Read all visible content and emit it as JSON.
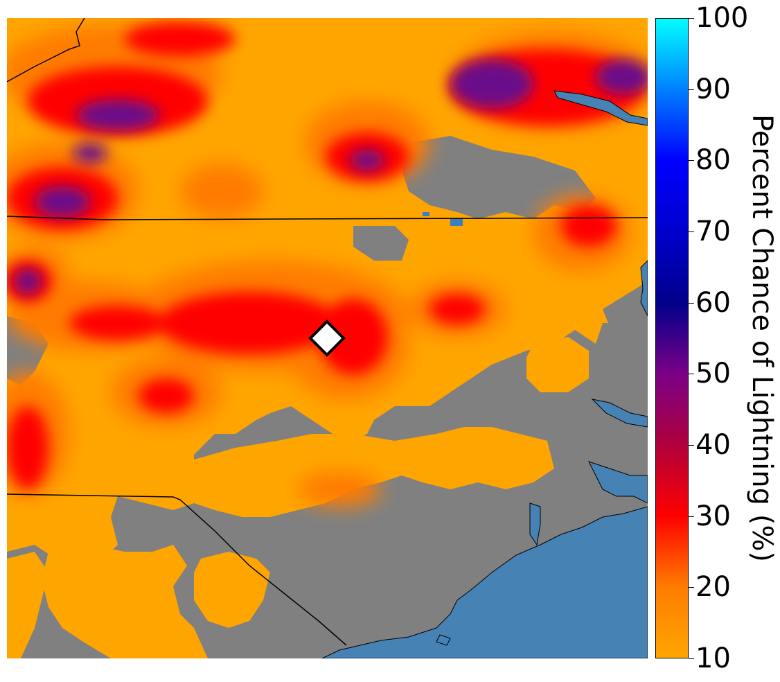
{
  "map": {
    "land_color": "#808080",
    "water_color": "#4682b4",
    "outline_color": "#000000",
    "marker": {
      "shape": "diamond",
      "fill": "#ffffff",
      "stroke": "#000000"
    }
  },
  "colorbar": {
    "label": "Percent Chance of Lightning (%)",
    "min": 10,
    "max": 100,
    "ticks": [
      "10",
      "20",
      "30",
      "40",
      "50",
      "60",
      "70",
      "80",
      "90",
      "100"
    ],
    "colors": [
      "#ffa500",
      "#ff7c00",
      "#ff0000",
      "#b0003c",
      "#7b0087",
      "#00008b",
      "#0000cd",
      "#0000ff",
      "#0080ff",
      "#00ffff"
    ]
  }
}
